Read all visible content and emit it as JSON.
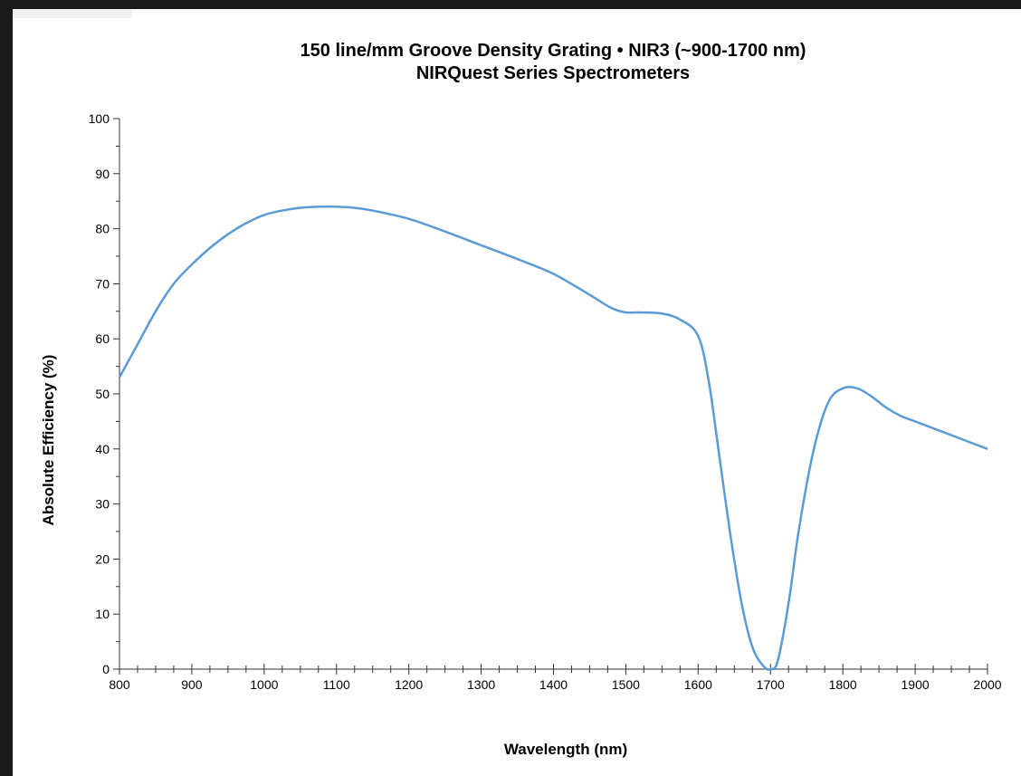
{
  "chart_data": {
    "type": "line",
    "title": "150 line/mm Groove Density Grating • NIR3 (~900-1700 nm)",
    "subtitle": "NIRQuest Series Spectrometers",
    "xlabel": "Wavelength (nm)",
    "ylabel": "Absolute Efficiency (%)",
    "xlim": [
      800,
      2000
    ],
    "ylim": [
      0,
      100
    ],
    "x_ticks": [
      800,
      900,
      1000,
      1100,
      1200,
      1300,
      1400,
      1500,
      1600,
      1700,
      1800,
      1900,
      2000
    ],
    "y_ticks": [
      0,
      10,
      20,
      30,
      40,
      50,
      60,
      70,
      80,
      90,
      100
    ],
    "grid": false,
    "legend": "none",
    "series": [
      {
        "color": "#5b9bd5",
        "x": [
          800,
          825,
          850,
          875,
          900,
          925,
          950,
          975,
          1000,
          1025,
          1050,
          1075,
          1100,
          1125,
          1150,
          1200,
          1250,
          1300,
          1350,
          1400,
          1450,
          1480,
          1500,
          1520,
          1550,
          1575,
          1600,
          1615,
          1630,
          1645,
          1660,
          1675,
          1690,
          1700,
          1710,
          1725,
          1740,
          1760,
          1780,
          1800,
          1820,
          1840,
          1860,
          1880,
          1900,
          1950,
          2000
        ],
        "y": [
          53,
          59,
          65,
          70,
          73.5,
          76.5,
          79,
          81,
          82.5,
          83.3,
          83.8,
          84,
          84,
          83.8,
          83.3,
          81.8,
          79.5,
          77,
          74.5,
          71.8,
          68,
          65.6,
          64.8,
          64.8,
          64.6,
          63.5,
          60.5,
          52,
          38,
          24,
          12,
          4,
          0.6,
          0,
          1.5,
          12,
          26,
          40,
          48.5,
          51,
          51,
          49.5,
          47.5,
          46,
          45,
          42.5,
          40
        ]
      }
    ]
  }
}
